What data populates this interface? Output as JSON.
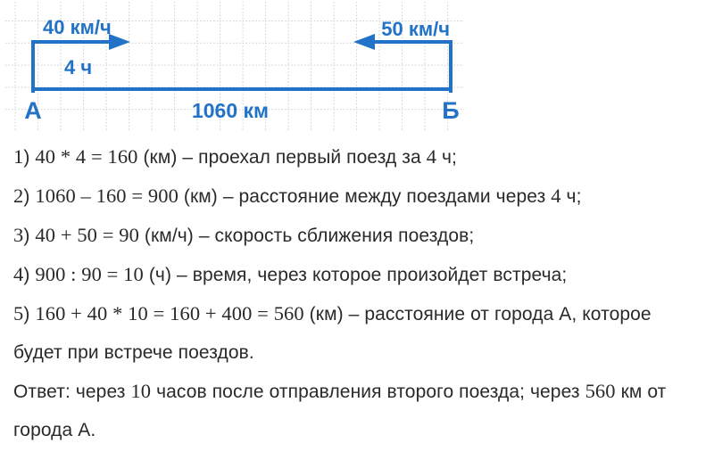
{
  "diagram": {
    "speed_left": "40 км/ч",
    "time_left": "4 ч",
    "speed_right": "50 км/ч",
    "distance": "1060 км",
    "city_a": "А",
    "city_b": "Б"
  },
  "colors": {
    "accent_blue": "#2273c7",
    "grid_gray": "#c9cccf",
    "text": "#2a2a2a",
    "background": "#ffffff"
  },
  "solution": {
    "steps": [
      "1) 40 * 4 = 160 (км) – проехал первый поезд за 4 ч;",
      "2) 1060 – 160 = 900 (км) – расстояние между поездами через 4 ч;",
      "3) 40 + 50 = 90 (км/ч) – скорость сближения поездов;",
      "4) 900 : 90 = 10 (ч) – время, через которое произойдет встреча;",
      "5) 160 + 40 * 10 = 160 + 400 = 560 (км) – расстояние от города А, которое будет при встрече поездов."
    ],
    "answer": "Ответ: через 10 часов после отправления второго поезда; через 560 км от города А."
  }
}
